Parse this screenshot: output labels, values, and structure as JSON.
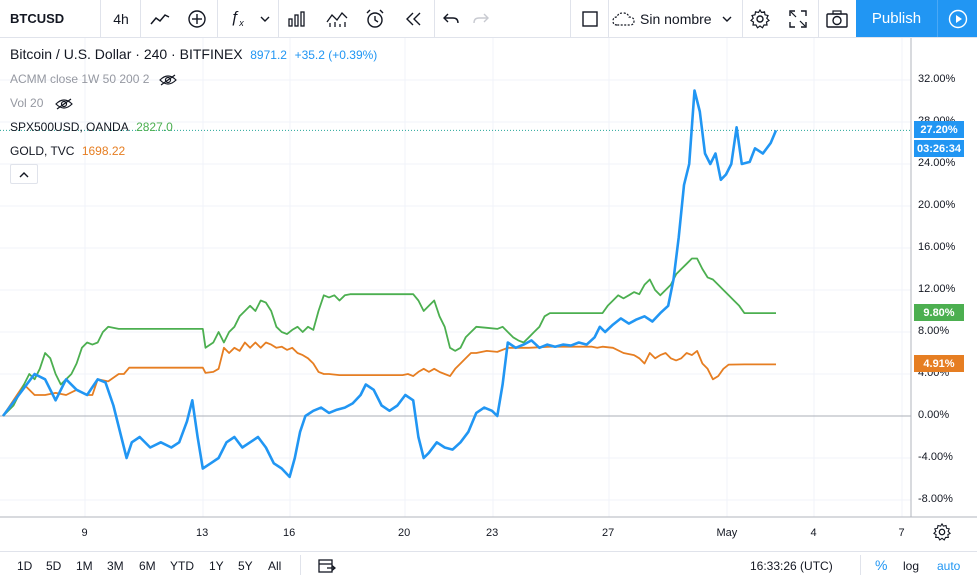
{
  "toolbar": {
    "symbol": "BTCUSD",
    "interval": "4h",
    "layout_name": "Sin nombre",
    "publish_label": "Publish"
  },
  "legend": {
    "main": {
      "title": "Bitcoin / U.S. Dollar · 240 · BITFINEX",
      "price": "8971.2",
      "change": "+35.2 (+0.39%)",
      "color": "#2196f3"
    },
    "indicators": [
      {
        "label": "ACMM close 1W 50 200 2"
      },
      {
        "label": "Vol 20"
      }
    ],
    "compare": [
      {
        "label": "SPX500USD, OANDA",
        "value": "2827.0",
        "color": "#4caf50"
      },
      {
        "label": "GOLD, TVC",
        "value": "1698.22",
        "color": "#e67e22"
      }
    ]
  },
  "price_axis": {
    "ticks": [
      "32.00%",
      "28.00%",
      "24.00%",
      "20.00%",
      "16.00%",
      "12.00%",
      "8.00%",
      "4.00%",
      "0.00%",
      "-4.00%",
      "-8.00%"
    ],
    "badges": [
      {
        "text": "27.20%",
        "color": "#2196f3"
      },
      {
        "text": "03:26:34",
        "color": "#2196f3"
      },
      {
        "text": "9.80%",
        "color": "#4caf50"
      },
      {
        "text": "4.91%",
        "color": "#e67e22"
      }
    ]
  },
  "time_axis": {
    "ticks": [
      "9",
      "13",
      "16",
      "20",
      "23",
      "27",
      "May",
      "4",
      "7"
    ]
  },
  "bottom_bar": {
    "ranges": [
      "1D",
      "5D",
      "1M",
      "3M",
      "6M",
      "YTD",
      "1Y",
      "5Y",
      "All"
    ],
    "clock": "16:33:26 (UTC)",
    "percent_label": "%",
    "log_label": "log",
    "auto_label": "auto"
  },
  "chart_data": {
    "type": "line",
    "ylabel": "",
    "yunit": "%",
    "ylim": [
      -10,
      34
    ],
    "x_ticks": [
      "9",
      "13",
      "16",
      "20",
      "23",
      "27",
      "May",
      "4",
      "7"
    ],
    "series": [
      {
        "name": "Bitcoin / U.S. Dollar",
        "color": "#2196f3",
        "points": [
          [
            0,
            0
          ],
          [
            3,
            2
          ],
          [
            6,
            4
          ],
          [
            8,
            3.5
          ],
          [
            10,
            1.5
          ],
          [
            12,
            3.5
          ],
          [
            14,
            2.5
          ],
          [
            16,
            2
          ],
          [
            18,
            3.5
          ],
          [
            19.5,
            3.2
          ],
          [
            21,
            1
          ],
          [
            22.5,
            -2
          ],
          [
            23.5,
            -4
          ],
          [
            24.5,
            -2.5
          ],
          [
            26,
            -2
          ],
          [
            28,
            -3
          ],
          [
            30,
            -2.5
          ],
          [
            32,
            -3
          ],
          [
            33.5,
            -2.5
          ],
          [
            35,
            -0.5
          ],
          [
            36,
            1.5
          ],
          [
            37,
            -2
          ],
          [
            38,
            -5
          ],
          [
            39.5,
            -4.5
          ],
          [
            41,
            -4
          ],
          [
            42.5,
            -2.5
          ],
          [
            44,
            -2
          ],
          [
            45.5,
            -3
          ],
          [
            47,
            -2.5
          ],
          [
            48.5,
            -2
          ],
          [
            50,
            -3
          ],
          [
            51.5,
            -4.5
          ],
          [
            53,
            -5
          ],
          [
            54.5,
            -5.8
          ],
          [
            55.5,
            -4
          ],
          [
            56.5,
            -1.5
          ],
          [
            57.5,
            0
          ],
          [
            59,
            0.5
          ],
          [
            60.5,
            0.8
          ],
          [
            62,
            0.3
          ],
          [
            63.5,
            0.6
          ],
          [
            65,
            0.8
          ],
          [
            66.5,
            1.2
          ],
          [
            68,
            2
          ],
          [
            69,
            3
          ],
          [
            70.5,
            2.5
          ],
          [
            72,
            1
          ],
          [
            73.5,
            0.5
          ],
          [
            75,
            1
          ],
          [
            76.5,
            2
          ],
          [
            78,
            1.5
          ],
          [
            79,
            -2
          ],
          [
            80,
            -4
          ],
          [
            81,
            -3.5
          ],
          [
            82.5,
            -2.5
          ],
          [
            84,
            -3
          ],
          [
            85.5,
            -3.2
          ],
          [
            87,
            -2.5
          ],
          [
            88.5,
            -1.5
          ],
          [
            90,
            0.3
          ],
          [
            91.5,
            0.8
          ],
          [
            93,
            0.5
          ],
          [
            94,
            0
          ],
          [
            95,
            3
          ],
          [
            96,
            7
          ],
          [
            97.5,
            6.5
          ],
          [
            99,
            6.8
          ],
          [
            100.5,
            7.2
          ],
          [
            102,
            6.5
          ],
          [
            103.5,
            6.8
          ],
          [
            105,
            6.6
          ],
          [
            106.5,
            6.8
          ],
          [
            108,
            6.7
          ],
          [
            109.5,
            7
          ],
          [
            111,
            6.8
          ],
          [
            112.5,
            7.5
          ],
          [
            113.5,
            8.5
          ],
          [
            114.5,
            8
          ],
          [
            116,
            8.7
          ],
          [
            117.5,
            9.3
          ],
          [
            119,
            8.8
          ],
          [
            120.5,
            9.2
          ],
          [
            122,
            9.5
          ],
          [
            123.5,
            9
          ],
          [
            125,
            9.8
          ],
          [
            126.5,
            10.5
          ],
          [
            127.5,
            13
          ],
          [
            128.5,
            17
          ],
          [
            129.5,
            22
          ],
          [
            130.5,
            24
          ],
          [
            131.5,
            31
          ],
          [
            132.5,
            29
          ],
          [
            133.5,
            25
          ],
          [
            134.5,
            24
          ],
          [
            135.5,
            25
          ],
          [
            136.5,
            22.5
          ],
          [
            137.5,
            23
          ],
          [
            138.5,
            24
          ],
          [
            139.5,
            27.5
          ],
          [
            140.5,
            24
          ],
          [
            142,
            24.2
          ],
          [
            143,
            25.5
          ],
          [
            144.5,
            25
          ],
          [
            146,
            26
          ],
          [
            147,
            27.2
          ]
        ]
      },
      {
        "name": "SPX500USD, OANDA",
        "color": "#4caf50",
        "points": [
          [
            0,
            0
          ],
          [
            2,
            1
          ],
          [
            4,
            3
          ],
          [
            5,
            4
          ],
          [
            6,
            3.5
          ],
          [
            7,
            4.5
          ],
          [
            8,
            6
          ],
          [
            9,
            5.5
          ],
          [
            10,
            4
          ],
          [
            11,
            3
          ],
          [
            12,
            3.5
          ],
          [
            13,
            4
          ],
          [
            14,
            5
          ],
          [
            15,
            6.5
          ],
          [
            16,
            7
          ],
          [
            17,
            6.8
          ],
          [
            18,
            7
          ],
          [
            19,
            8
          ],
          [
            20,
            8.5
          ],
          [
            22,
            8.3
          ],
          [
            26,
            8.3
          ],
          [
            30,
            8.3
          ],
          [
            34,
            8.3
          ],
          [
            38,
            8.3
          ],
          [
            38.5,
            6.5
          ],
          [
            40,
            7
          ],
          [
            41,
            8
          ],
          [
            42,
            7
          ],
          [
            43,
            8
          ],
          [
            44,
            8.5
          ],
          [
            45,
            9.5
          ],
          [
            46,
            10
          ],
          [
            47,
            10.5
          ],
          [
            48,
            10
          ],
          [
            49,
            11
          ],
          [
            50,
            10.8
          ],
          [
            51,
            10
          ],
          [
            52,
            8.5
          ],
          [
            53,
            8
          ],
          [
            54,
            7.8
          ],
          [
            55,
            8.2
          ],
          [
            56,
            8.5
          ],
          [
            57,
            8
          ],
          [
            58,
            8.5
          ],
          [
            59,
            8.2
          ],
          [
            60,
            10
          ],
          [
            61,
            11.5
          ],
          [
            62,
            11.3
          ],
          [
            63,
            11.5
          ],
          [
            64,
            11
          ],
          [
            65,
            11.5
          ],
          [
            66,
            11.6
          ],
          [
            72,
            11.6
          ],
          [
            78,
            11.6
          ],
          [
            79,
            11
          ],
          [
            80,
            10
          ],
          [
            81,
            10.5
          ],
          [
            82,
            11
          ],
          [
            83,
            9.5
          ],
          [
            84,
            8.5
          ],
          [
            85,
            6.5
          ],
          [
            86,
            6.2
          ],
          [
            87,
            6.5
          ],
          [
            88,
            7.5
          ],
          [
            89,
            8
          ],
          [
            90,
            8.5
          ],
          [
            92,
            8.4
          ],
          [
            94,
            8.3
          ],
          [
            95,
            8.5
          ],
          [
            96,
            8
          ],
          [
            97,
            7.5
          ],
          [
            98,
            7.2
          ],
          [
            99,
            7
          ],
          [
            100,
            7.5
          ],
          [
            101,
            8
          ],
          [
            102,
            8.5
          ],
          [
            103,
            9.5
          ],
          [
            104,
            9.8
          ],
          [
            110,
            9.8
          ],
          [
            114,
            9.8
          ],
          [
            115,
            10.5
          ],
          [
            116,
            11
          ],
          [
            117,
            11.5
          ],
          [
            118,
            11.2
          ],
          [
            119,
            11.5
          ],
          [
            120,
            11.8
          ],
          [
            121,
            11.6
          ],
          [
            122,
            12.5
          ],
          [
            123,
            13
          ],
          [
            124,
            12
          ],
          [
            125,
            11.5
          ],
          [
            126,
            12
          ],
          [
            127,
            12.5
          ],
          [
            128,
            13.5
          ],
          [
            129,
            14
          ],
          [
            130,
            14.5
          ],
          [
            131,
            15
          ],
          [
            132,
            15
          ],
          [
            133,
            14
          ],
          [
            134,
            13.2
          ],
          [
            135,
            13
          ],
          [
            136,
            12.5
          ],
          [
            137,
            12
          ],
          [
            138,
            11.5
          ],
          [
            139,
            11
          ],
          [
            140,
            10.5
          ],
          [
            141,
            9.8
          ],
          [
            145,
            9.8
          ],
          [
            147,
            9.8
          ]
        ]
      },
      {
        "name": "GOLD, TVC",
        "color": "#e67e22",
        "points": [
          [
            0,
            0
          ],
          [
            2,
            1.5
          ],
          [
            4,
            3
          ],
          [
            5,
            2.5
          ],
          [
            6,
            2
          ],
          [
            8,
            2
          ],
          [
            10,
            2.2
          ],
          [
            12,
            2
          ],
          [
            14,
            2.5
          ],
          [
            16,
            2
          ],
          [
            17,
            2
          ],
          [
            18,
            3.5
          ],
          [
            20,
            3.3
          ],
          [
            22,
            4
          ],
          [
            23,
            4
          ],
          [
            24,
            4.6
          ],
          [
            28,
            4.6
          ],
          [
            32,
            4.6
          ],
          [
            36,
            4.6
          ],
          [
            38,
            4.6
          ],
          [
            38.5,
            4.1
          ],
          [
            40,
            4.2
          ],
          [
            41,
            4.5
          ],
          [
            42,
            6.5
          ],
          [
            43,
            6
          ],
          [
            44,
            6.5
          ],
          [
            45,
            6.2
          ],
          [
            46,
            7
          ],
          [
            47,
            6.5
          ],
          [
            48,
            7
          ],
          [
            49,
            6.5
          ],
          [
            50,
            7
          ],
          [
            51,
            6.8
          ],
          [
            52,
            6.5
          ],
          [
            53,
            6.6
          ],
          [
            54,
            6.3
          ],
          [
            55,
            6.5
          ],
          [
            56,
            6
          ],
          [
            57,
            5.8
          ],
          [
            58,
            5.5
          ],
          [
            59,
            5
          ],
          [
            60,
            4.2
          ],
          [
            61,
            4
          ],
          [
            62,
            4
          ],
          [
            64,
            3.9
          ],
          [
            68,
            3.9
          ],
          [
            72,
            3.9
          ],
          [
            76,
            3.9
          ],
          [
            77,
            4
          ],
          [
            78,
            3.8
          ],
          [
            79,
            4.2
          ],
          [
            80,
            4.5
          ],
          [
            81,
            4.2
          ],
          [
            82,
            4.5
          ],
          [
            83,
            4.2
          ],
          [
            84,
            4
          ],
          [
            85,
            3.8
          ],
          [
            86,
            4.5
          ],
          [
            87,
            5
          ],
          [
            88,
            5.5
          ],
          [
            89,
            6
          ],
          [
            90,
            6
          ],
          [
            92,
            6.2
          ],
          [
            94,
            6.1
          ],
          [
            96,
            6.5
          ],
          [
            100,
            6.5
          ],
          [
            104,
            6.6
          ],
          [
            108,
            6.6
          ],
          [
            112,
            6.6
          ],
          [
            113,
            6.5
          ],
          [
            114,
            6.6
          ],
          [
            116,
            6.5
          ],
          [
            118,
            6
          ],
          [
            120,
            5.8
          ],
          [
            121,
            5.5
          ],
          [
            122,
            5
          ],
          [
            123,
            6
          ],
          [
            124,
            5.5
          ],
          [
            125,
            5.8
          ],
          [
            126,
            6
          ],
          [
            127,
            5.5
          ],
          [
            128,
            5.3
          ],
          [
            129,
            5.5
          ],
          [
            130,
            6
          ],
          [
            131,
            5.8
          ],
          [
            132,
            6.2
          ],
          [
            133,
            5
          ],
          [
            134,
            4.5
          ],
          [
            135,
            3.5
          ],
          [
            136,
            3.8
          ],
          [
            137,
            4.5
          ],
          [
            138,
            4.9
          ],
          [
            141,
            4.91
          ],
          [
            145,
            4.91
          ],
          [
            147,
            4.91
          ]
        ]
      }
    ]
  }
}
